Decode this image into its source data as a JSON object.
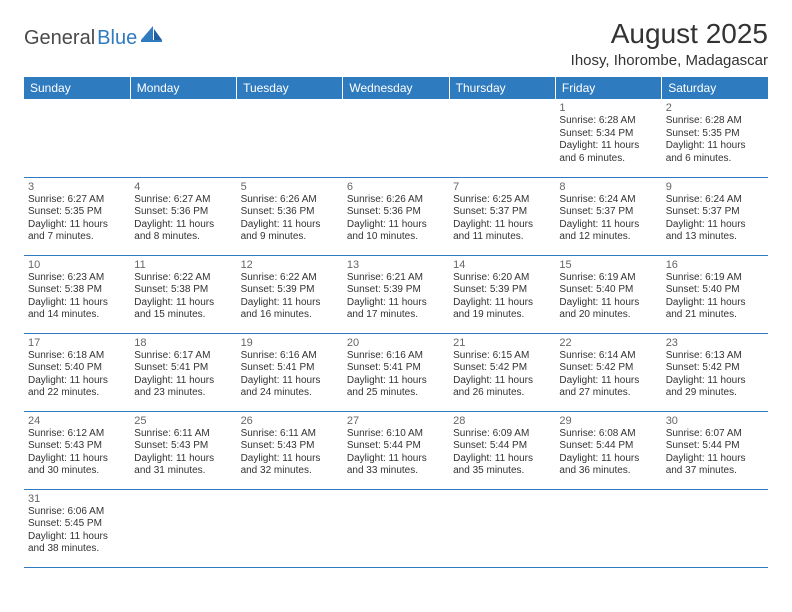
{
  "logo": {
    "part1": "General",
    "part2": "Blue"
  },
  "title": "August 2025",
  "location": "Ihosy, Ihorombe, Madagascar",
  "colors": {
    "header_bg": "#2f7bbf",
    "header_fg": "#ffffff",
    "border": "#2f7bbf",
    "text": "#333333",
    "muted": "#666666"
  },
  "weekdays": [
    "Sunday",
    "Monday",
    "Tuesday",
    "Wednesday",
    "Thursday",
    "Friday",
    "Saturday"
  ],
  "weeks": [
    [
      null,
      null,
      null,
      null,
      null,
      {
        "n": "1",
        "sr": "Sunrise: 6:28 AM",
        "ss": "Sunset: 5:34 PM",
        "dl1": "Daylight: 11 hours",
        "dl2": "and 6 minutes."
      },
      {
        "n": "2",
        "sr": "Sunrise: 6:28 AM",
        "ss": "Sunset: 5:35 PM",
        "dl1": "Daylight: 11 hours",
        "dl2": "and 6 minutes."
      }
    ],
    [
      {
        "n": "3",
        "sr": "Sunrise: 6:27 AM",
        "ss": "Sunset: 5:35 PM",
        "dl1": "Daylight: 11 hours",
        "dl2": "and 7 minutes."
      },
      {
        "n": "4",
        "sr": "Sunrise: 6:27 AM",
        "ss": "Sunset: 5:36 PM",
        "dl1": "Daylight: 11 hours",
        "dl2": "and 8 minutes."
      },
      {
        "n": "5",
        "sr": "Sunrise: 6:26 AM",
        "ss": "Sunset: 5:36 PM",
        "dl1": "Daylight: 11 hours",
        "dl2": "and 9 minutes."
      },
      {
        "n": "6",
        "sr": "Sunrise: 6:26 AM",
        "ss": "Sunset: 5:36 PM",
        "dl1": "Daylight: 11 hours",
        "dl2": "and 10 minutes."
      },
      {
        "n": "7",
        "sr": "Sunrise: 6:25 AM",
        "ss": "Sunset: 5:37 PM",
        "dl1": "Daylight: 11 hours",
        "dl2": "and 11 minutes."
      },
      {
        "n": "8",
        "sr": "Sunrise: 6:24 AM",
        "ss": "Sunset: 5:37 PM",
        "dl1": "Daylight: 11 hours",
        "dl2": "and 12 minutes."
      },
      {
        "n": "9",
        "sr": "Sunrise: 6:24 AM",
        "ss": "Sunset: 5:37 PM",
        "dl1": "Daylight: 11 hours",
        "dl2": "and 13 minutes."
      }
    ],
    [
      {
        "n": "10",
        "sr": "Sunrise: 6:23 AM",
        "ss": "Sunset: 5:38 PM",
        "dl1": "Daylight: 11 hours",
        "dl2": "and 14 minutes."
      },
      {
        "n": "11",
        "sr": "Sunrise: 6:22 AM",
        "ss": "Sunset: 5:38 PM",
        "dl1": "Daylight: 11 hours",
        "dl2": "and 15 minutes."
      },
      {
        "n": "12",
        "sr": "Sunrise: 6:22 AM",
        "ss": "Sunset: 5:39 PM",
        "dl1": "Daylight: 11 hours",
        "dl2": "and 16 minutes."
      },
      {
        "n": "13",
        "sr": "Sunrise: 6:21 AM",
        "ss": "Sunset: 5:39 PM",
        "dl1": "Daylight: 11 hours",
        "dl2": "and 17 minutes."
      },
      {
        "n": "14",
        "sr": "Sunrise: 6:20 AM",
        "ss": "Sunset: 5:39 PM",
        "dl1": "Daylight: 11 hours",
        "dl2": "and 19 minutes."
      },
      {
        "n": "15",
        "sr": "Sunrise: 6:19 AM",
        "ss": "Sunset: 5:40 PM",
        "dl1": "Daylight: 11 hours",
        "dl2": "and 20 minutes."
      },
      {
        "n": "16",
        "sr": "Sunrise: 6:19 AM",
        "ss": "Sunset: 5:40 PM",
        "dl1": "Daylight: 11 hours",
        "dl2": "and 21 minutes."
      }
    ],
    [
      {
        "n": "17",
        "sr": "Sunrise: 6:18 AM",
        "ss": "Sunset: 5:40 PM",
        "dl1": "Daylight: 11 hours",
        "dl2": "and 22 minutes."
      },
      {
        "n": "18",
        "sr": "Sunrise: 6:17 AM",
        "ss": "Sunset: 5:41 PM",
        "dl1": "Daylight: 11 hours",
        "dl2": "and 23 minutes."
      },
      {
        "n": "19",
        "sr": "Sunrise: 6:16 AM",
        "ss": "Sunset: 5:41 PM",
        "dl1": "Daylight: 11 hours",
        "dl2": "and 24 minutes."
      },
      {
        "n": "20",
        "sr": "Sunrise: 6:16 AM",
        "ss": "Sunset: 5:41 PM",
        "dl1": "Daylight: 11 hours",
        "dl2": "and 25 minutes."
      },
      {
        "n": "21",
        "sr": "Sunrise: 6:15 AM",
        "ss": "Sunset: 5:42 PM",
        "dl1": "Daylight: 11 hours",
        "dl2": "and 26 minutes."
      },
      {
        "n": "22",
        "sr": "Sunrise: 6:14 AM",
        "ss": "Sunset: 5:42 PM",
        "dl1": "Daylight: 11 hours",
        "dl2": "and 27 minutes."
      },
      {
        "n": "23",
        "sr": "Sunrise: 6:13 AM",
        "ss": "Sunset: 5:42 PM",
        "dl1": "Daylight: 11 hours",
        "dl2": "and 29 minutes."
      }
    ],
    [
      {
        "n": "24",
        "sr": "Sunrise: 6:12 AM",
        "ss": "Sunset: 5:43 PM",
        "dl1": "Daylight: 11 hours",
        "dl2": "and 30 minutes."
      },
      {
        "n": "25",
        "sr": "Sunrise: 6:11 AM",
        "ss": "Sunset: 5:43 PM",
        "dl1": "Daylight: 11 hours",
        "dl2": "and 31 minutes."
      },
      {
        "n": "26",
        "sr": "Sunrise: 6:11 AM",
        "ss": "Sunset: 5:43 PM",
        "dl1": "Daylight: 11 hours",
        "dl2": "and 32 minutes."
      },
      {
        "n": "27",
        "sr": "Sunrise: 6:10 AM",
        "ss": "Sunset: 5:44 PM",
        "dl1": "Daylight: 11 hours",
        "dl2": "and 33 minutes."
      },
      {
        "n": "28",
        "sr": "Sunrise: 6:09 AM",
        "ss": "Sunset: 5:44 PM",
        "dl1": "Daylight: 11 hours",
        "dl2": "and 35 minutes."
      },
      {
        "n": "29",
        "sr": "Sunrise: 6:08 AM",
        "ss": "Sunset: 5:44 PM",
        "dl1": "Daylight: 11 hours",
        "dl2": "and 36 minutes."
      },
      {
        "n": "30",
        "sr": "Sunrise: 6:07 AM",
        "ss": "Sunset: 5:44 PM",
        "dl1": "Daylight: 11 hours",
        "dl2": "and 37 minutes."
      }
    ],
    [
      {
        "n": "31",
        "sr": "Sunrise: 6:06 AM",
        "ss": "Sunset: 5:45 PM",
        "dl1": "Daylight: 11 hours",
        "dl2": "and 38 minutes."
      },
      null,
      null,
      null,
      null,
      null,
      null
    ]
  ]
}
